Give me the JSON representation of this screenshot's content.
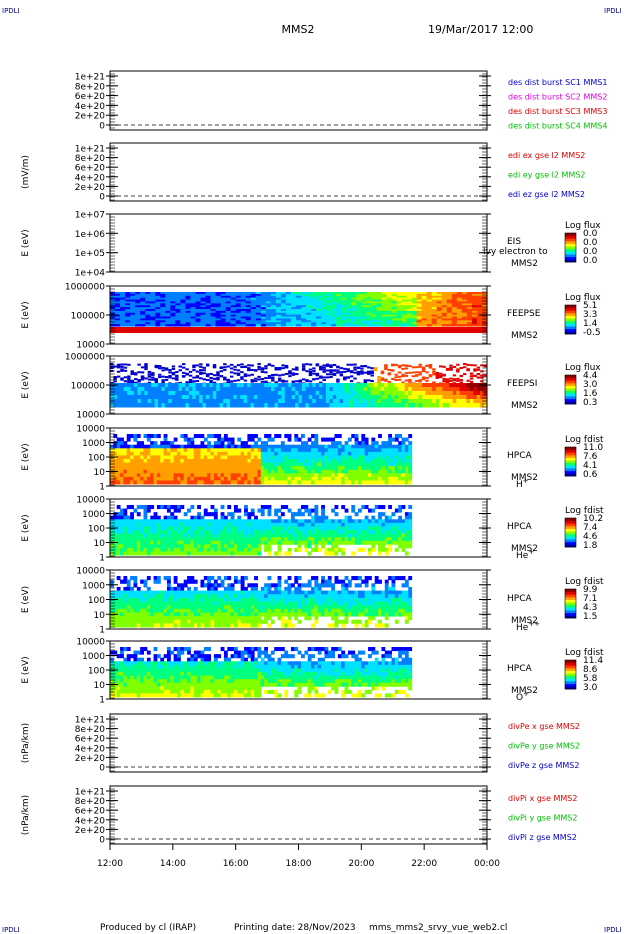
{
  "header": {
    "title": "MMS2",
    "datetime": "19/Mar/2017 12:00",
    "corner": "IPDLI"
  },
  "footer": {
    "produced_by": "Produced by cl (IRAP)",
    "printing_date": "Printing date: 28/Nov/2023",
    "file": "mms_mms2_srvy_vue_web2.cl"
  },
  "colors": {
    "blue": "#0000cc",
    "magenta": "#e000e0",
    "red": "#e00000",
    "green": "#00c000",
    "rainbow": [
      "#0000a0",
      "#0000ff",
      "#0080ff",
      "#00e0ff",
      "#00ff80",
      "#80ff00",
      "#ffff00",
      "#ffa000",
      "#ff4000",
      "#e00000",
      "#900000"
    ]
  },
  "chart_data": [
    {
      "type": "line",
      "id": "p1",
      "ylabel": "",
      "yticks": [
        "1e+21",
        "8e+20",
        "6e+20",
        "4e+20",
        "2e+20",
        "0"
      ],
      "legend": [
        {
          "label": "des dist burst SC1 MMS1",
          "color": "blue"
        },
        {
          "label": "des dist burst SC2 MMS2",
          "color": "magenta"
        },
        {
          "label": "des dist burst SC3 MMS3",
          "color": "red"
        },
        {
          "label": "des dist burst SC4 MMS4",
          "color": "green"
        }
      ]
    },
    {
      "type": "line",
      "id": "p2",
      "ylabel": "(mV/m)",
      "yticks": [
        "1e+21",
        "8e+20",
        "6e+20",
        "4e+20",
        "2e+20",
        "0"
      ],
      "legend": [
        {
          "label": "edi ex gse l2 MMS2",
          "color": "red"
        },
        {
          "label": "edi ey gse l2 MMS2",
          "color": "green"
        },
        {
          "label": "edi ez gse l2 MMS2",
          "color": "blue"
        }
      ]
    },
    {
      "type": "heatmap",
      "id": "p3",
      "ylabel": "E (eV)",
      "yticks": [
        "1e+07",
        "1e+06",
        "1e+05",
        "1e+04"
      ],
      "instrument": [
        "EIS",
        "MMS2"
      ],
      "overlay": "lvy electron to",
      "cbar_title": "Log flux",
      "cbar_ticks": [
        "0.0",
        "0.0",
        "0.0",
        "0.0"
      ]
    },
    {
      "type": "heatmap",
      "id": "p4",
      "ylabel": "E (eV)",
      "yticks": [
        "1000000",
        "100000",
        "10000"
      ],
      "instrument": [
        "FEEPSE",
        "MMS2"
      ],
      "cbar_title": "Log flux",
      "cbar_ticks": [
        "5.1",
        "3.3",
        "1.4",
        "-0.5"
      ]
    },
    {
      "type": "heatmap",
      "id": "p5",
      "ylabel": "E (eV)",
      "yticks": [
        "1000000",
        "100000",
        "10000"
      ],
      "instrument": [
        "FEEPSI",
        "MMS2"
      ],
      "cbar_title": "Log flux",
      "cbar_ticks": [
        "4.4",
        "3.0",
        "1.6",
        "0.3"
      ]
    },
    {
      "type": "heatmap",
      "id": "p6",
      "ylabel": "E (eV)",
      "yticks": [
        "10000",
        "1000",
        "100",
        "10",
        "1"
      ],
      "instrument": [
        "HPCA",
        "MMS2"
      ],
      "species": "H",
      "species_sup": "+",
      "cbar_title": "Log fdist",
      "cbar_ticks": [
        "11.0",
        "7.6",
        "4.1",
        "0.6"
      ]
    },
    {
      "type": "heatmap",
      "id": "p7",
      "ylabel": "E (eV)",
      "yticks": [
        "10000",
        "1000",
        "100",
        "10",
        "1"
      ],
      "instrument": [
        "HPCA",
        "MMS2"
      ],
      "species": "He",
      "species_sup": "+",
      "cbar_title": "Log fdist",
      "cbar_ticks": [
        "10.2",
        "7.4",
        "4.6",
        "1.8"
      ]
    },
    {
      "type": "heatmap",
      "id": "p8",
      "ylabel": "E (eV)",
      "yticks": [
        "10000",
        "1000",
        "100",
        "10",
        "1"
      ],
      "instrument": [
        "HPCA",
        "MMS2"
      ],
      "species": "He",
      "species_sup": "++",
      "cbar_title": "Log fdist",
      "cbar_ticks": [
        "9.9",
        "7.1",
        "4.3",
        "1.5"
      ]
    },
    {
      "type": "heatmap",
      "id": "p9",
      "ylabel": "E (eV)",
      "yticks": [
        "10000",
        "1000",
        "100",
        "10",
        "1"
      ],
      "instrument": [
        "HPCA",
        "MMS2"
      ],
      "species": "O",
      "species_sup": "+",
      "cbar_title": "Log fdist",
      "cbar_ticks": [
        "11.4",
        "8.6",
        "5.8",
        "3.0"
      ]
    },
    {
      "type": "line",
      "id": "p10",
      "ylabel": "(nPa/km)",
      "yticks": [
        "1e+21",
        "8e+20",
        "6e+20",
        "4e+20",
        "2e+20",
        "0"
      ],
      "legend": [
        {
          "label": "divPe x gse MMS2",
          "color": "red"
        },
        {
          "label": "divPe y gse MMS2",
          "color": "green"
        },
        {
          "label": "divPe z gse MMS2",
          "color": "blue"
        }
      ]
    },
    {
      "type": "line",
      "id": "p11",
      "ylabel": "(nPa/km)",
      "yticks": [
        "1e+21",
        "8e+20",
        "6e+20",
        "4e+20",
        "2e+20",
        "0"
      ],
      "legend": [
        {
          "label": "divPi x gse MMS2",
          "color": "red"
        },
        {
          "label": "divPi y gse MMS2",
          "color": "green"
        },
        {
          "label": "divPi z gse MMS2",
          "color": "blue"
        }
      ]
    }
  ],
  "xaxis": {
    "ticks": [
      "12:00",
      "14:00",
      "16:00",
      "18:00",
      "20:00",
      "22:00",
      "00:00"
    ]
  }
}
